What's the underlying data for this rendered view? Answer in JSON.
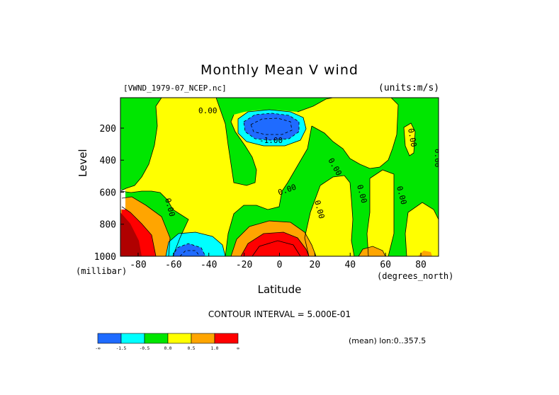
{
  "chart_data": {
    "type": "heatmap",
    "title": "Monthly Mean V wind",
    "dataset_label": "[VWND_1979-07_NCEP.nc]",
    "units_label": "(units:m/s)",
    "xlabel": "Latitude",
    "x_units": "(degrees_north)",
    "ylabel": "Level",
    "y_units": "(millibar)",
    "xlim": [
      -90,
      90
    ],
    "ylim": [
      1000,
      10
    ],
    "x_ticks": [
      -80,
      -60,
      -40,
      -20,
      0,
      20,
      40,
      60,
      80
    ],
    "y_ticks": [
      200,
      400,
      600,
      800,
      1000
    ],
    "contour_interval_text": "CONTOUR INTERVAL = 5.000E-01",
    "footer_text": "(mean) lon:0..357.5",
    "legend": [
      {
        "color": "#1f6bff",
        "label": "-∞"
      },
      {
        "color": "#00ffff",
        "label": "-1.5"
      },
      {
        "color": "#00e600",
        "label": "-0.5"
      },
      {
        "color": "#ffff00",
        "label": "0.0"
      },
      {
        "color": "#ffa500",
        "label": "0.5"
      },
      {
        "color": "#ff0000",
        "label": "1.0"
      },
      {
        "label": "∞"
      }
    ],
    "contour_labels": [
      "0.00",
      "-1.00",
      "0.00",
      "0.00",
      "0.00",
      "0.00",
      "0.00",
      "0.00",
      "0.00",
      "0.00"
    ],
    "colors": {
      "negative_strong": "#1f6bff",
      "negative_mid": "#00ffff",
      "negative_weak": "#00e600",
      "positive_weak": "#ffff00",
      "positive_mid": "#ffa500",
      "positive_strong": "#ff0000",
      "positive_extreme": "#b00000"
    }
  }
}
